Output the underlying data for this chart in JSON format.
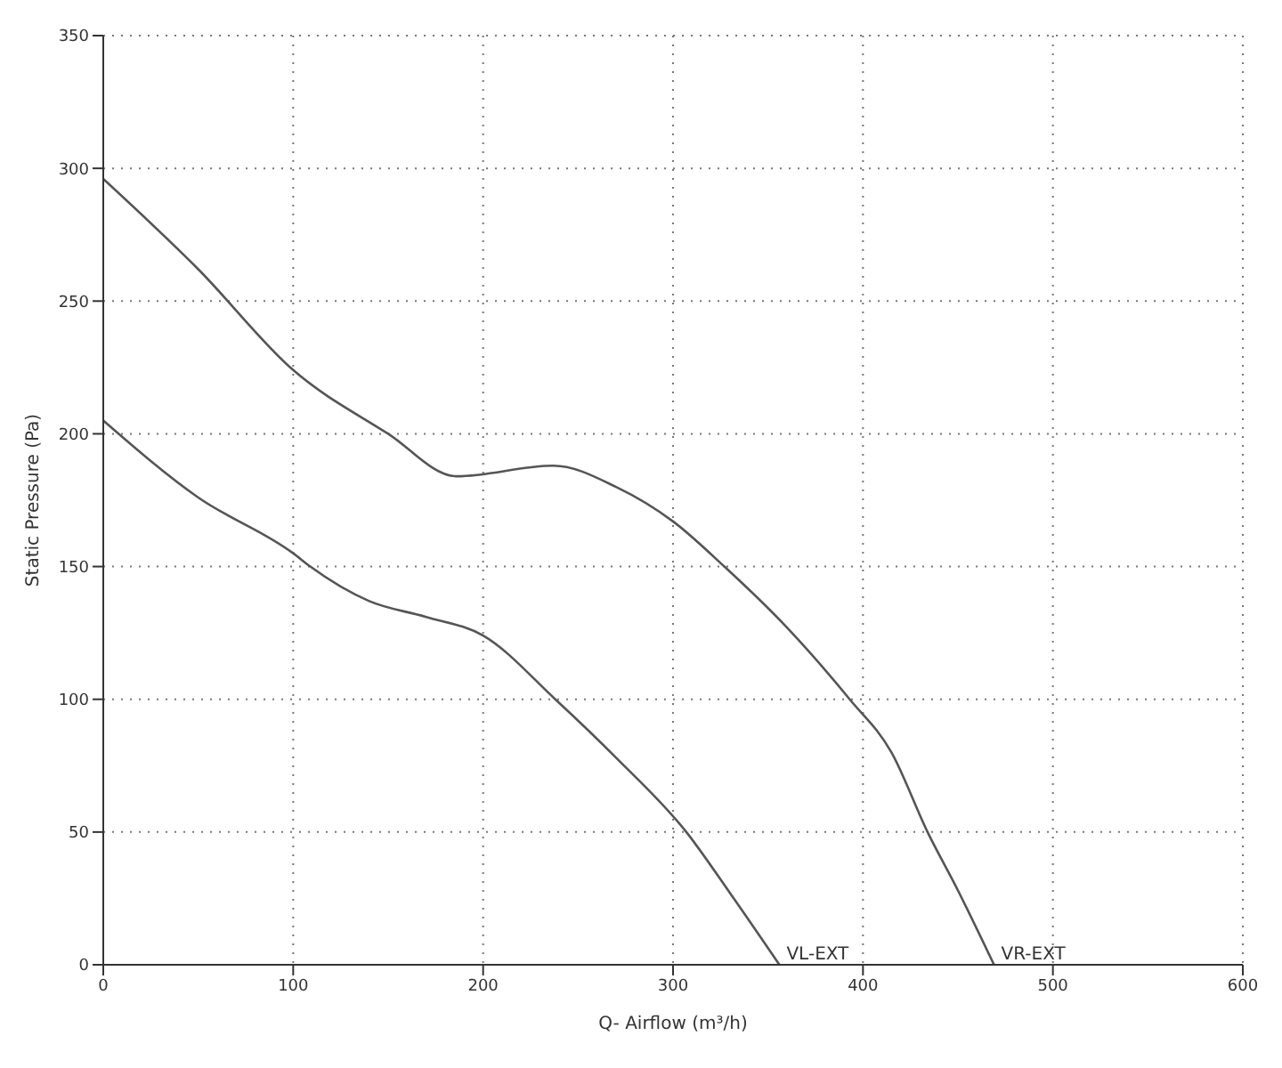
{
  "chart_data": {
    "type": "line",
    "xlabel": "Q- Airflow (m³/h)",
    "ylabel": "Static Pressure (Pa)",
    "xlim": [
      0,
      600
    ],
    "xticks": [
      0,
      100,
      200,
      300,
      400,
      500,
      600
    ],
    "ylim": [
      0,
      350
    ],
    "yticks": [
      0,
      50,
      100,
      150,
      200,
      250,
      300,
      350
    ],
    "grid": true,
    "legend": false,
    "marker": "none",
    "line_style": "solid",
    "series": [
      {
        "name": "VL-EXT",
        "color": "#555555",
        "x": [
          0,
          50,
          100,
          109,
          140,
          170,
          200,
          238,
          270,
          307,
          330,
          356
        ],
        "values": [
          205,
          176,
          155,
          150,
          137,
          131,
          124,
          100,
          78,
          50,
          27,
          0
        ]
      },
      {
        "name": "VR-EXT",
        "color": "#555555",
        "x": [
          0,
          50,
          100,
          150,
          186,
          237,
          270,
          300,
          327,
          360,
          393,
          415,
          434,
          450,
          469
        ],
        "values": [
          296,
          262,
          224,
          200,
          184,
          188,
          180,
          167,
          150,
          127,
          100,
          80,
          50,
          28,
          0
        ]
      }
    ]
  }
}
